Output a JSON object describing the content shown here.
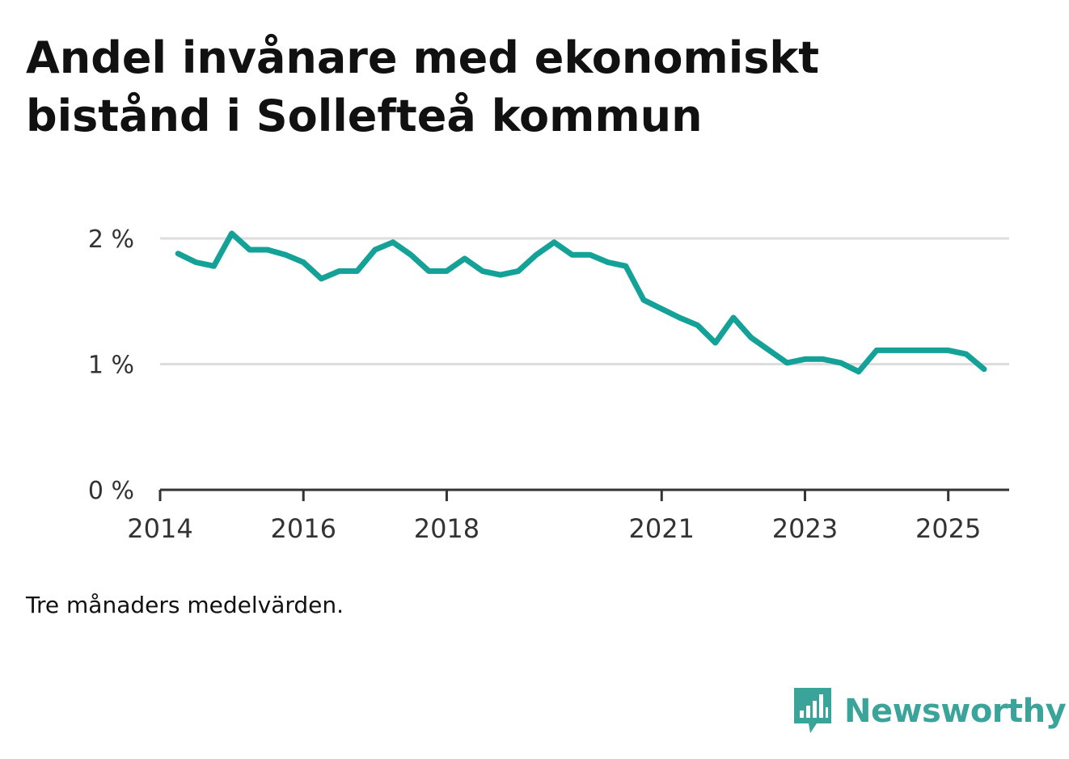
{
  "title_lines": [
    "Andel invånare med ekonomiskt",
    "bistånd i Sollefteå kommun"
  ],
  "note": "Tre månaders medelvärden.",
  "brand": {
    "name": "Newsworthy",
    "icon": "bar-chart-speech-bubble-icon",
    "color": "#3aa39a"
  },
  "colors": {
    "line": "#14a298",
    "grid": "#dddddd",
    "axis": "#333333",
    "text": "#333333"
  },
  "chart_data": {
    "type": "line",
    "title": "Andel invånare med ekonomiskt bistånd i Sollefteå kommun",
    "xlabel": "",
    "ylabel": "",
    "y_unit": "%",
    "ylim": [
      0,
      2
    ],
    "yticks": [
      0,
      1,
      2
    ],
    "ytick_labels": [
      "0 %",
      "1 %",
      "2 %"
    ],
    "xlim": [
      2014.0,
      2025.85
    ],
    "xticks": [
      2014,
      2016,
      2018,
      2021,
      2023,
      2025
    ],
    "xtick_labels": [
      "2014",
      "2016",
      "2018",
      "2021",
      "2023",
      "2025"
    ],
    "grid": true,
    "series": [
      {
        "name": "Andel invånare med ekonomiskt bistånd",
        "x": [
          2014.25,
          2014.5,
          2014.75,
          2015.0,
          2015.25,
          2015.5,
          2015.75,
          2016.0,
          2016.25,
          2016.5,
          2016.75,
          2017.0,
          2017.25,
          2017.5,
          2017.75,
          2018.0,
          2018.25,
          2018.5,
          2018.75,
          2019.0,
          2019.25,
          2019.5,
          2019.75,
          2020.0,
          2020.25,
          2020.5,
          2020.75,
          2021.0,
          2021.25,
          2021.5,
          2021.75,
          2022.0,
          2022.25,
          2022.5,
          2022.75,
          2023.0,
          2023.25,
          2023.5,
          2023.75,
          2024.0,
          2024.25,
          2024.5,
          2024.75,
          2025.0,
          2025.25,
          2025.5
        ],
        "values": [
          1.88,
          1.81,
          1.78,
          2.04,
          1.91,
          1.91,
          1.87,
          1.81,
          1.68,
          1.74,
          1.74,
          1.91,
          1.97,
          1.87,
          1.74,
          1.74,
          1.84,
          1.74,
          1.71,
          1.74,
          1.87,
          1.97,
          1.87,
          1.87,
          1.81,
          1.78,
          1.51,
          1.44,
          1.37,
          1.31,
          1.17,
          1.37,
          1.21,
          1.11,
          1.01,
          1.04,
          1.04,
          1.01,
          0.94,
          1.11,
          1.11,
          1.11,
          1.11,
          1.11,
          1.08,
          0.96
        ]
      }
    ]
  }
}
